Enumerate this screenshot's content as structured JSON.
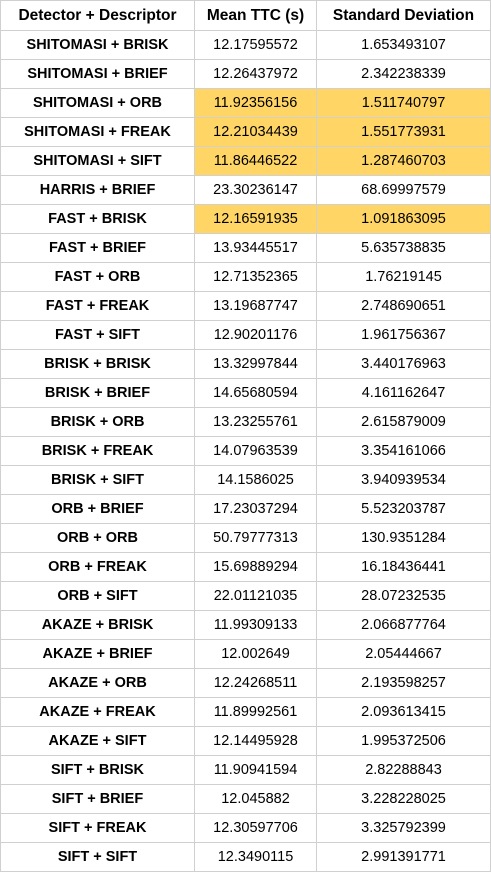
{
  "chart_data": {
    "type": "table",
    "highlight_color": "#ffd666",
    "columns": [
      "Detector + Descriptor",
      "Mean TTC (s)",
      "Standard Deviation"
    ],
    "rows": [
      {
        "name": "SHITOMASI + BRISK",
        "mean": "12.17595572",
        "std": "1.653493107",
        "highlight": false
      },
      {
        "name": "SHITOMASI + BRIEF",
        "mean": "12.26437972",
        "std": "2.342238339",
        "highlight": false
      },
      {
        "name": "SHITOMASI + ORB",
        "mean": "11.92356156",
        "std": "1.511740797",
        "highlight": true
      },
      {
        "name": "SHITOMASI + FREAK",
        "mean": "12.21034439",
        "std": "1.551773931",
        "highlight": true
      },
      {
        "name": "SHITOMASI + SIFT",
        "mean": "11.86446522",
        "std": "1.287460703",
        "highlight": true
      },
      {
        "name": "HARRIS + BRIEF",
        "mean": "23.30236147",
        "std": "68.69997579",
        "highlight": false
      },
      {
        "name": "FAST + BRISK",
        "mean": "12.16591935",
        "std": "1.091863095",
        "highlight": true
      },
      {
        "name": "FAST + BRIEF",
        "mean": "13.93445517",
        "std": "5.635738835",
        "highlight": false
      },
      {
        "name": "FAST + ORB",
        "mean": "12.71352365",
        "std": "1.76219145",
        "highlight": false
      },
      {
        "name": "FAST + FREAK",
        "mean": "13.19687747",
        "std": "2.748690651",
        "highlight": false
      },
      {
        "name": "FAST + SIFT",
        "mean": "12.90201176",
        "std": "1.961756367",
        "highlight": false
      },
      {
        "name": "BRISK + BRISK",
        "mean": "13.32997844",
        "std": "3.440176963",
        "highlight": false
      },
      {
        "name": "BRISK + BRIEF",
        "mean": "14.65680594",
        "std": "4.161162647",
        "highlight": false
      },
      {
        "name": "BRISK + ORB",
        "mean": "13.23255761",
        "std": "2.615879009",
        "highlight": false
      },
      {
        "name": "BRISK + FREAK",
        "mean": "14.07963539",
        "std": "3.354161066",
        "highlight": false
      },
      {
        "name": "BRISK + SIFT",
        "mean": "14.1586025",
        "std": "3.940939534",
        "highlight": false
      },
      {
        "name": "ORB + BRIEF",
        "mean": "17.23037294",
        "std": "5.523203787",
        "highlight": false
      },
      {
        "name": "ORB + ORB",
        "mean": "50.79777313",
        "std": "130.9351284",
        "highlight": false
      },
      {
        "name": "ORB + FREAK",
        "mean": "15.69889294",
        "std": "16.18436441",
        "highlight": false
      },
      {
        "name": "ORB + SIFT",
        "mean": "22.01121035",
        "std": "28.07232535",
        "highlight": false
      },
      {
        "name": "AKAZE + BRISK",
        "mean": "11.99309133",
        "std": "2.066877764",
        "highlight": false
      },
      {
        "name": "AKAZE + BRIEF",
        "mean": "12.002649",
        "std": "2.05444667",
        "highlight": false
      },
      {
        "name": "AKAZE + ORB",
        "mean": "12.24268511",
        "std": "2.193598257",
        "highlight": false
      },
      {
        "name": "AKAZE + FREAK",
        "mean": "11.89992561",
        "std": "2.093613415",
        "highlight": false
      },
      {
        "name": "AKAZE + SIFT",
        "mean": "12.14495928",
        "std": "1.995372506",
        "highlight": false
      },
      {
        "name": "SIFT + BRISK",
        "mean": "11.90941594",
        "std": "2.82288843",
        "highlight": false
      },
      {
        "name": "SIFT + BRIEF",
        "mean": "12.045882",
        "std": "3.228228025",
        "highlight": false
      },
      {
        "name": "SIFT + FREAK",
        "mean": "12.30597706",
        "std": "3.325792399",
        "highlight": false
      },
      {
        "name": "SIFT + SIFT",
        "mean": "12.3490115",
        "std": "2.991391771",
        "highlight": false
      }
    ]
  }
}
